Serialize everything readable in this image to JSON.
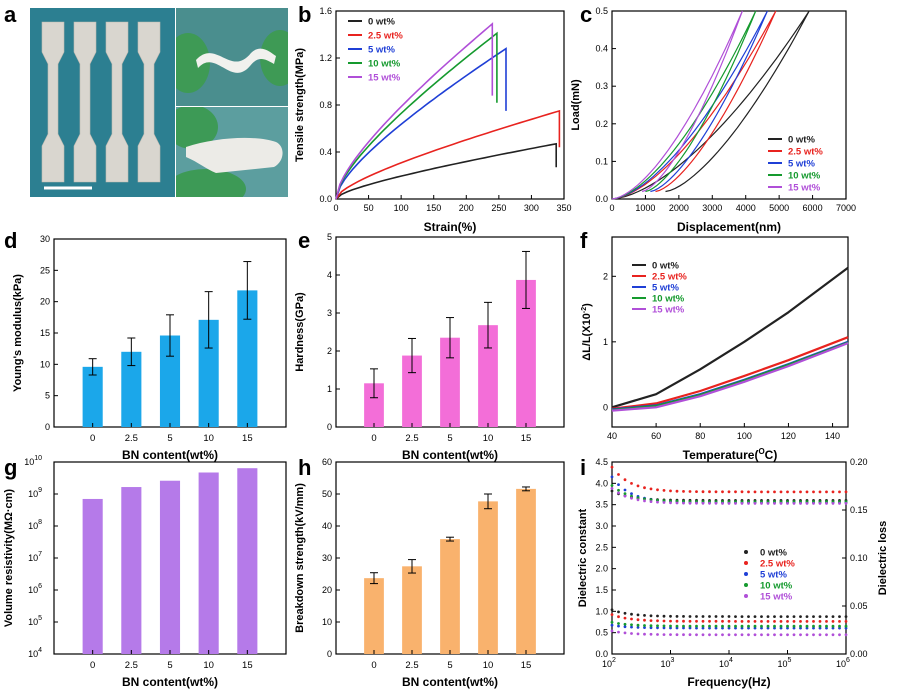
{
  "panel_letters": {
    "a": "a",
    "b": "b",
    "c": "c",
    "d": "d",
    "e": "e",
    "f": "f",
    "g": "g",
    "h": "h",
    "i": "i"
  },
  "colors": {
    "c0": "#222222",
    "c25": "#e8231f",
    "c5": "#1f3fd6",
    "c10": "#159a2e",
    "c15": "#b04fd8",
    "blue_bar": "#1ba7ea",
    "pink_bar": "#f36ed8",
    "purple_bar": "#b57ae9",
    "orange_bar": "#f9b26d",
    "photo_bg": "#2c7f91"
  },
  "legend_labels": [
    "0    wt%",
    "2.5 wt%",
    "5    wt%",
    "10   wt%",
    "15   wt%"
  ],
  "chart_data": [
    {
      "id": "b",
      "type": "line",
      "title": "",
      "xlabel": "Strain(%)",
      "ylabel": "Tensile strength(MPa)",
      "xlim": [
        0,
        350
      ],
      "ylim": [
        0,
        1.6
      ],
      "xticks": [
        0,
        50,
        100,
        150,
        200,
        250,
        300,
        350
      ],
      "yticks": [
        0.0,
        0.4,
        0.8,
        1.2,
        1.6
      ],
      "series": [
        {
          "name": "0 wt%",
          "break_x": 338,
          "break_y": 0.47,
          "drop_to": 0.27
        },
        {
          "name": "2.5 wt%",
          "break_x": 343,
          "break_y": 0.75,
          "drop_to": 0.44
        },
        {
          "name": "5 wt%",
          "break_x": 261,
          "break_y": 1.28,
          "drop_to": 0.75
        },
        {
          "name": "10 wt%",
          "break_x": 247,
          "break_y": 1.41,
          "drop_to": 0.82
        },
        {
          "name": "15 wt%",
          "break_x": 240,
          "break_y": 1.49,
          "drop_to": 0.88
        }
      ]
    },
    {
      "id": "c",
      "type": "line",
      "xlabel": "Displacement(nm)",
      "ylabel": "Load(mN)",
      "xlim": [
        0,
        7000
      ],
      "ylim": [
        0,
        0.5
      ],
      "xticks": [
        0,
        1000,
        2000,
        3000,
        4000,
        5000,
        6000,
        7000
      ],
      "yticks": [
        0.0,
        0.1,
        0.2,
        0.3,
        0.4,
        0.5
      ],
      "series": [
        {
          "name": "0 wt%",
          "load_end": 5900,
          "unload_end": 1600
        },
        {
          "name": "2.5 wt%",
          "load_end": 4900,
          "unload_end": 1300
        },
        {
          "name": "5 wt%",
          "load_end": 4650,
          "unload_end": 1150
        },
        {
          "name": "10 wt%",
          "load_end": 4300,
          "unload_end": 1000
        },
        {
          "name": "15 wt%",
          "load_end": 3900,
          "unload_end": 900
        }
      ]
    },
    {
      "id": "d",
      "type": "bar",
      "xlabel": "BN content(wt%)",
      "ylabel": "Young's modulus(kPa)",
      "categories": [
        "0",
        "2.5",
        "5",
        "10",
        "15"
      ],
      "values": [
        9.6,
        12.0,
        14.6,
        17.1,
        21.8
      ],
      "errors": [
        1.3,
        2.2,
        3.3,
        4.5,
        4.6
      ],
      "ylim": [
        0,
        30
      ],
      "yticks": [
        0,
        5,
        10,
        15,
        20,
        25,
        30
      ]
    },
    {
      "id": "e",
      "type": "bar",
      "xlabel": "BN content(wt%)",
      "ylabel": "Hardness(GPa)",
      "categories": [
        "0",
        "2.5",
        "5",
        "10",
        "15"
      ],
      "values": [
        1.15,
        1.88,
        2.35,
        2.68,
        3.87
      ],
      "errors": [
        0.38,
        0.45,
        0.53,
        0.6,
        0.75
      ],
      "ylim": [
        0,
        5
      ],
      "yticks": [
        0,
        1,
        2,
        3,
        4,
        5
      ]
    },
    {
      "id": "f",
      "type": "line",
      "xlabel": "Temperature(",
      "xlabel_unit": "C)",
      "xlabel_sup": "O",
      "ylabel": "ΔL/L(X10",
      "ylabel_sup": "-2",
      "ylabel_end": ")",
      "xlim": [
        40,
        147
      ],
      "ylim": [
        -0.3,
        2.6
      ],
      "xticks": [
        40,
        60,
        80,
        100,
        120,
        140
      ],
      "yticks": [
        0,
        1,
        2
      ],
      "series": [
        {
          "name": "0 wt%",
          "x": [
            40,
            60,
            80,
            100,
            120,
            147
          ],
          "y": [
            0,
            0.2,
            0.58,
            1.0,
            1.45,
            2.13
          ]
        },
        {
          "name": "2.5 wt%",
          "x": [
            40,
            60,
            80,
            100,
            120,
            147
          ],
          "y": [
            -0.02,
            0.06,
            0.25,
            0.48,
            0.72,
            1.07
          ]
        },
        {
          "name": "5 wt%",
          "x": [
            40,
            60,
            80,
            100,
            120,
            147
          ],
          "y": [
            -0.03,
            0.03,
            0.2,
            0.42,
            0.66,
            1.0
          ]
        },
        {
          "name": "10 wt%",
          "x": [
            40,
            60,
            80,
            100,
            120,
            147
          ],
          "y": [
            -0.04,
            0.02,
            0.19,
            0.41,
            0.65,
            0.99
          ]
        },
        {
          "name": "15 wt%",
          "x": [
            40,
            60,
            80,
            100,
            120,
            147
          ],
          "y": [
            -0.05,
            0.0,
            0.17,
            0.39,
            0.63,
            0.98
          ]
        }
      ]
    },
    {
      "id": "g",
      "type": "bar",
      "scale": "log",
      "xlabel": "BN content(wt%)",
      "ylabel": "Volume resistivity(MΩ·cm)",
      "categories": [
        "0",
        "2.5",
        "5",
        "10",
        "15"
      ],
      "values": [
        700000000.0,
        1650000000.0,
        2600000000.0,
        4700000000.0,
        6400000000.0
      ],
      "ylim_exp": [
        4,
        10
      ],
      "ytick_exps": [
        4,
        5,
        6,
        7,
        8,
        9,
        10
      ]
    },
    {
      "id": "h",
      "type": "bar",
      "xlabel": "BN content(wt%)",
      "ylabel": "Breakdown strength(kV/mm)",
      "categories": [
        "0",
        "2.5",
        "5",
        "10",
        "15"
      ],
      "values": [
        23.7,
        27.4,
        35.9,
        47.7,
        51.6
      ],
      "errors": [
        1.7,
        2.1,
        0.6,
        2.3,
        0.6
      ],
      "ylim": [
        0,
        60
      ],
      "yticks": [
        0,
        10,
        20,
        30,
        40,
        50,
        60
      ]
    },
    {
      "id": "i",
      "type": "scatter",
      "xlabel": "Frequency(Hz)",
      "ylabel": "Dielectric constant",
      "ylabel2": "Dielectric loss",
      "ylim": [
        0,
        4.5
      ],
      "ylim2": [
        0,
        0.2
      ],
      "yticks": [
        0.0,
        0.5,
        1.0,
        1.5,
        2.0,
        2.5,
        3.0,
        3.5,
        4.0,
        4.5
      ],
      "yticks2": [
        0.0,
        0.05,
        0.1,
        0.15,
        0.2
      ],
      "xtick_exps": [
        2,
        3,
        4,
        5,
        6
      ],
      "series": [
        {
          "name": "0 wt%",
          "eps_start": 3.82,
          "eps_end": 3.6,
          "loss_start": 0.046,
          "loss_end": 0.039
        },
        {
          "name": "2.5 wt%",
          "eps_start": 4.38,
          "eps_end": 3.8,
          "loss_start": 0.041,
          "loss_end": 0.034
        },
        {
          "name": "5 wt%",
          "eps_start": 4.15,
          "eps_end": 3.55,
          "loss_start": 0.03,
          "loss_end": 0.027
        },
        {
          "name": "10 wt%",
          "eps_start": 3.95,
          "eps_end": 3.57,
          "loss_start": 0.033,
          "loss_end": 0.029
        },
        {
          "name": "15 wt%",
          "eps_start": 3.88,
          "eps_end": 3.53,
          "loss_start": 0.024,
          "loss_end": 0.02
        }
      ]
    }
  ]
}
